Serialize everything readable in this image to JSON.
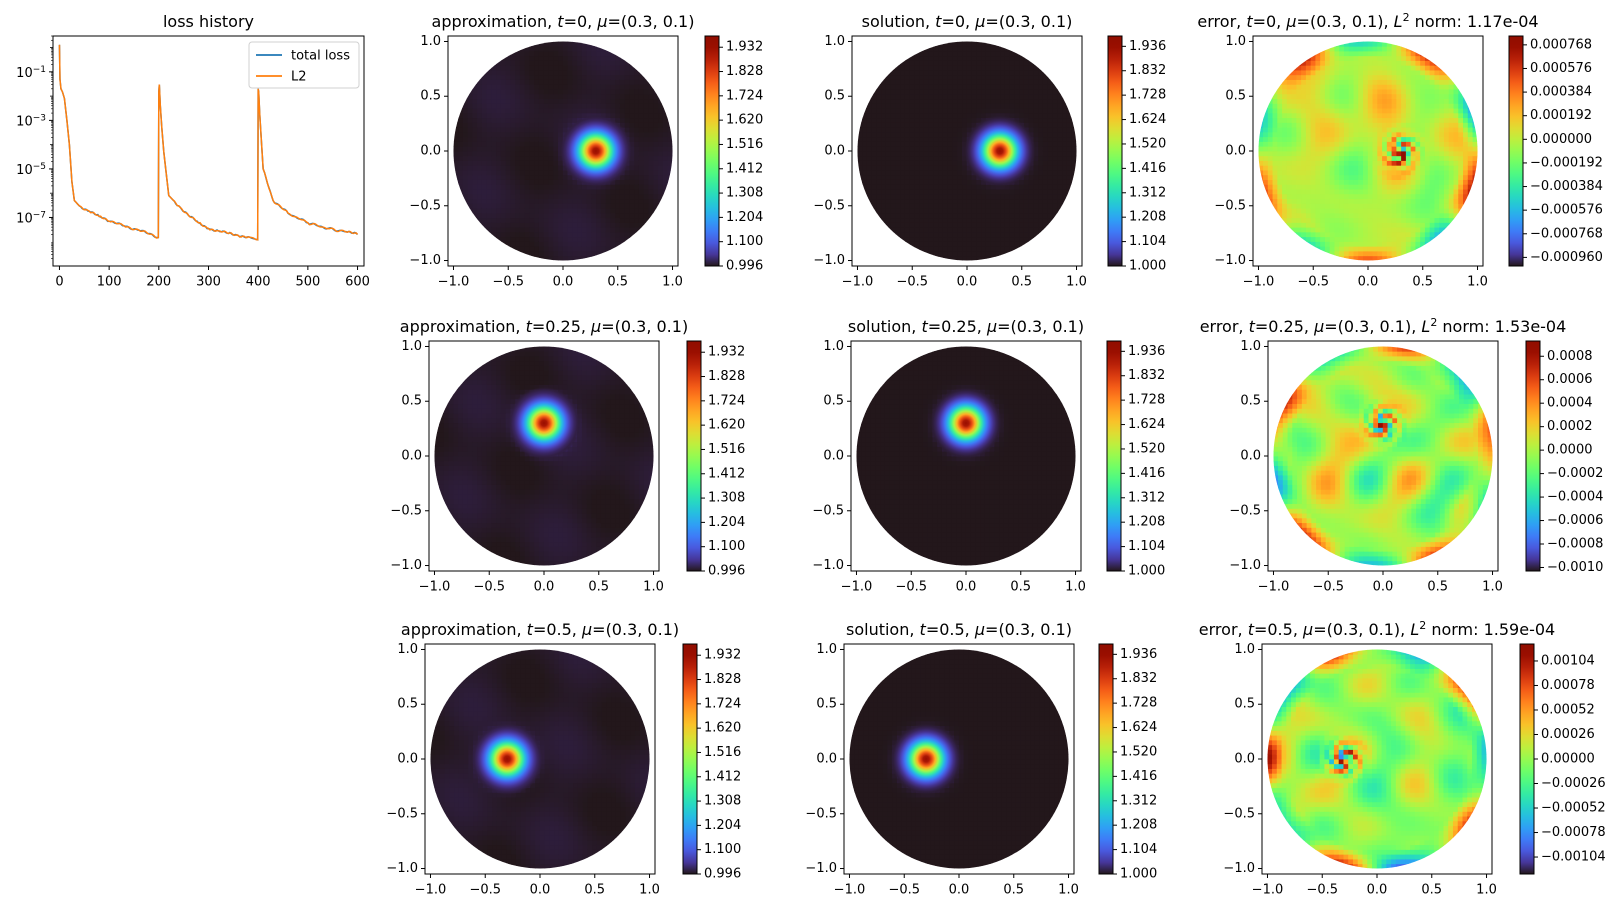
{
  "figure": {
    "colors": {
      "axis": "#000000",
      "total_loss": "#1f77b4",
      "l2": "#ff7f0e"
    },
    "colormap": "turbo"
  },
  "chart_data": [
    {
      "id": "loss",
      "type": "line",
      "scale_y": "log",
      "title": "loss history",
      "xlim": [
        -13,
        613
      ],
      "ylim": [
        1e-09,
        3
      ],
      "x_ticks": [
        0,
        100,
        200,
        300,
        400,
        500,
        600
      ],
      "x_tick_labels": [
        "0",
        "100",
        "200",
        "300",
        "400",
        "500",
        "600"
      ],
      "y_ticks": [
        1e-07,
        1e-05,
        0.001,
        0.1
      ],
      "y_tick_labels": [
        {
          "base": "10",
          "exp": "−7"
        },
        {
          "base": "10",
          "exp": "−5"
        },
        {
          "base": "10",
          "exp": "−3"
        },
        {
          "base": "10",
          "exp": "−1"
        }
      ],
      "legend": {
        "position": "upper right",
        "entries": [
          "total loss",
          "L2"
        ]
      },
      "series": [
        {
          "name": "total loss",
          "color": "#1f77b4",
          "x": [
            0,
            1,
            3,
            6,
            10,
            15,
            20,
            25,
            30,
            40,
            60,
            80,
            100,
            130,
            160,
            199,
            200,
            201,
            203,
            206,
            210,
            220,
            240,
            260,
            280,
            300,
            320,
            340,
            360,
            380,
            399,
            400,
            401,
            403,
            406,
            410,
            430,
            460,
            500,
            540,
            580,
            600
          ],
          "y": [
            1.3,
            0.05,
            0.02,
            0.015,
            0.008,
            0.001,
            0.0001,
            3e-06,
            5e-07,
            3e-07,
            1.8e-07,
            1.1e-07,
            7e-08,
            4.5e-08,
            3e-08,
            1.5e-08,
            0.015,
            0.03,
            0.004,
            0.0005,
            5e-05,
            8e-07,
            3e-07,
            1.2e-07,
            6e-08,
            3.5e-08,
            2.8e-08,
            2.2e-08,
            1.8e-08,
            1.6e-08,
            1.2e-08,
            0.02,
            0.015,
            0.002,
            0.0002,
            1e-05,
            5e-07,
            1.5e-07,
            6e-08,
            3.5e-08,
            2.5e-08,
            2e-08
          ]
        },
        {
          "name": "L2",
          "color": "#ff7f0e",
          "x": [
            0,
            1,
            3,
            6,
            10,
            15,
            20,
            25,
            30,
            40,
            60,
            80,
            100,
            130,
            160,
            199,
            200,
            201,
            203,
            206,
            210,
            220,
            240,
            260,
            280,
            300,
            320,
            340,
            360,
            380,
            399,
            400,
            401,
            403,
            406,
            410,
            430,
            460,
            500,
            540,
            580,
            600
          ],
          "y": [
            1.3,
            0.05,
            0.02,
            0.015,
            0.008,
            0.001,
            0.0001,
            3e-06,
            5e-07,
            3e-07,
            1.8e-07,
            1.1e-07,
            7e-08,
            4.5e-08,
            3e-08,
            1.5e-08,
            0.015,
            0.03,
            0.004,
            0.0005,
            5e-05,
            8e-07,
            3e-07,
            1.2e-07,
            6e-08,
            3.5e-08,
            2.8e-08,
            2.2e-08,
            1.8e-08,
            1.6e-08,
            1.2e-08,
            0.02,
            0.015,
            0.002,
            0.0002,
            1e-05,
            5e-07,
            1.5e-07,
            6e-08,
            3.5e-08,
            2.5e-08,
            2e-08
          ]
        }
      ]
    },
    {
      "id": "approx-t0",
      "type": "heatmap",
      "kind": "approximation",
      "title": [
        {
          "t": "approximation, "
        },
        {
          "t": "t",
          "i": true
        },
        {
          "t": "=0, "
        },
        {
          "t": "μ",
          "i": true
        },
        {
          "t": "=(0.3, 0.1)"
        }
      ],
      "xlim": [
        -1.05,
        1.05
      ],
      "ylim": [
        -1.05,
        1.05
      ],
      "x_tick_labels": [
        "−1.0",
        "−0.5",
        "0.0",
        "0.5",
        "1.0"
      ],
      "y_tick_labels": [
        "−1.0",
        "−0.5",
        "0.0",
        "0.5",
        "1.0"
      ],
      "blob_center": [
        0.3,
        0.0
      ],
      "blob_sigma": 0.1,
      "background": 1.0,
      "peak": 1.936,
      "colorbar": {
        "min": 0.996,
        "max": 1.98,
        "ticks": [
          0.996,
          1.1,
          1.204,
          1.308,
          1.412,
          1.516,
          1.62,
          1.724,
          1.828,
          1.932
        ],
        "labels": [
          "0.996",
          "1.100",
          "1.204",
          "1.308",
          "1.412",
          "1.516",
          "1.620",
          "1.724",
          "1.828",
          "1.932"
        ]
      }
    },
    {
      "id": "sol-t0",
      "type": "heatmap",
      "kind": "solution",
      "title": [
        {
          "t": "solution, "
        },
        {
          "t": "t",
          "i": true
        },
        {
          "t": "=0, "
        },
        {
          "t": "μ",
          "i": true
        },
        {
          "t": "=(0.3, 0.1)"
        }
      ],
      "xlim": [
        -1.05,
        1.05
      ],
      "ylim": [
        -1.05,
        1.05
      ],
      "x_tick_labels": [
        "−1.0",
        "−0.5",
        "0.0",
        "0.5",
        "1.0"
      ],
      "y_tick_labels": [
        "−1.0",
        "−0.5",
        "0.0",
        "0.5",
        "1.0"
      ],
      "blob_center": [
        0.3,
        0.0
      ],
      "blob_sigma": 0.1,
      "background": 1.0,
      "peak": 1.936,
      "colorbar": {
        "min": 1.0,
        "max": 1.98,
        "ticks": [
          1.0,
          1.104,
          1.208,
          1.312,
          1.416,
          1.52,
          1.624,
          1.728,
          1.832,
          1.936
        ],
        "labels": [
          "1.000",
          "1.104",
          "1.208",
          "1.312",
          "1.416",
          "1.520",
          "1.624",
          "1.728",
          "1.832",
          "1.936"
        ]
      }
    },
    {
      "id": "err-t0",
      "type": "heatmap",
      "kind": "error",
      "title": [
        {
          "t": "error, "
        },
        {
          "t": "t",
          "i": true
        },
        {
          "t": "=0, "
        },
        {
          "t": "μ",
          "i": true
        },
        {
          "t": "=(0.3, 0.1), "
        },
        {
          "t": "L",
          "i": true
        },
        {
          "t": "2",
          "sup": true
        },
        {
          "t": " norm: 1.17e-04"
        }
      ],
      "xlim": [
        -1.05,
        1.05
      ],
      "ylim": [
        -1.05,
        1.05
      ],
      "x_tick_labels": [
        "−1.0",
        "−0.5",
        "0.0",
        "0.5",
        "1.0"
      ],
      "y_tick_labels": [
        "−1.0",
        "−0.5",
        "0.0",
        "0.5",
        "1.0"
      ],
      "blob_center": [
        0.3,
        0.0
      ],
      "seed": 3,
      "colorbar": {
        "min": -0.00103,
        "max": 0.00084,
        "ticks": [
          -0.00096,
          -0.000768,
          -0.000576,
          -0.000384,
          -0.000192,
          0.0,
          0.000192,
          0.000384,
          0.000576,
          0.000768
        ],
        "labels": [
          "−0.000960",
          "−0.000768",
          "−0.000576",
          "−0.000384",
          "−0.000192",
          "0.000000",
          "0.000192",
          "0.000384",
          "0.000576",
          "0.000768"
        ]
      }
    },
    {
      "id": "approx-t025",
      "type": "heatmap",
      "kind": "approximation",
      "title": [
        {
          "t": "approximation, "
        },
        {
          "t": "t",
          "i": true
        },
        {
          "t": "=0.25, "
        },
        {
          "t": "μ",
          "i": true
        },
        {
          "t": "=(0.3, 0.1)"
        }
      ],
      "xlim": [
        -1.05,
        1.05
      ],
      "ylim": [
        -1.05,
        1.05
      ],
      "x_tick_labels": [
        "−1.0",
        "−0.5",
        "0.0",
        "0.5",
        "1.0"
      ],
      "y_tick_labels": [
        "−1.0",
        "−0.5",
        "0.0",
        "0.5",
        "1.0"
      ],
      "blob_center": [
        0.0,
        0.3
      ],
      "blob_sigma": 0.1,
      "background": 1.0,
      "peak": 1.936,
      "colorbar": {
        "min": 0.996,
        "max": 1.98,
        "ticks": [
          0.996,
          1.1,
          1.204,
          1.308,
          1.412,
          1.516,
          1.62,
          1.724,
          1.828,
          1.932
        ],
        "labels": [
          "0.996",
          "1.100",
          "1.204",
          "1.308",
          "1.412",
          "1.516",
          "1.620",
          "1.724",
          "1.828",
          "1.932"
        ]
      }
    },
    {
      "id": "sol-t025",
      "type": "heatmap",
      "kind": "solution",
      "title": [
        {
          "t": "solution, "
        },
        {
          "t": "t",
          "i": true
        },
        {
          "t": "=0.25, "
        },
        {
          "t": "μ",
          "i": true
        },
        {
          "t": "=(0.3, 0.1)"
        }
      ],
      "xlim": [
        -1.05,
        1.05
      ],
      "ylim": [
        -1.05,
        1.05
      ],
      "x_tick_labels": [
        "−1.0",
        "−0.5",
        "0.0",
        "0.5",
        "1.0"
      ],
      "y_tick_labels": [
        "−1.0",
        "−0.5",
        "0.0",
        "0.5",
        "1.0"
      ],
      "blob_center": [
        0.0,
        0.3
      ],
      "blob_sigma": 0.1,
      "background": 1.0,
      "peak": 1.936,
      "colorbar": {
        "min": 1.0,
        "max": 1.98,
        "ticks": [
          1.0,
          1.104,
          1.208,
          1.312,
          1.416,
          1.52,
          1.624,
          1.728,
          1.832,
          1.936
        ],
        "labels": [
          "1.000",
          "1.104",
          "1.208",
          "1.312",
          "1.416",
          "1.520",
          "1.624",
          "1.728",
          "1.832",
          "1.936"
        ]
      }
    },
    {
      "id": "err-t025",
      "type": "heatmap",
      "kind": "error",
      "title": [
        {
          "t": "error, "
        },
        {
          "t": "t",
          "i": true
        },
        {
          "t": "=0.25, "
        },
        {
          "t": "μ",
          "i": true
        },
        {
          "t": "=(0.3, 0.1), "
        },
        {
          "t": "L",
          "i": true
        },
        {
          "t": "2",
          "sup": true
        },
        {
          "t": " norm: 1.53e-04"
        }
      ],
      "xlim": [
        -1.05,
        1.05
      ],
      "ylim": [
        -1.05,
        1.05
      ],
      "x_tick_labels": [
        "−1.0",
        "−0.5",
        "0.0",
        "0.5",
        "1.0"
      ],
      "y_tick_labels": [
        "−1.0",
        "−0.5",
        "0.0",
        "0.5",
        "1.0"
      ],
      "blob_center": [
        0.0,
        0.3
      ],
      "seed": 7,
      "colorbar": {
        "min": -0.00103,
        "max": 0.00093,
        "ticks": [
          -0.001,
          -0.0008,
          -0.0006,
          -0.0004,
          -0.0002,
          0.0,
          0.0002,
          0.0004,
          0.0006,
          0.0008
        ],
        "labels": [
          "−0.0010",
          "−0.0008",
          "−0.0006",
          "−0.0004",
          "−0.0002",
          "0.0000",
          "0.0002",
          "0.0004",
          "0.0006",
          "0.0008"
        ]
      }
    },
    {
      "id": "approx-t05",
      "type": "heatmap",
      "kind": "approximation",
      "title": [
        {
          "t": "approximation, "
        },
        {
          "t": "t",
          "i": true
        },
        {
          "t": "=0.5, "
        },
        {
          "t": "μ",
          "i": true
        },
        {
          "t": "=(0.3, 0.1)"
        }
      ],
      "xlim": [
        -1.05,
        1.05
      ],
      "ylim": [
        -1.05,
        1.05
      ],
      "x_tick_labels": [
        "−1.0",
        "−0.5",
        "0.0",
        "0.5",
        "1.0"
      ],
      "y_tick_labels": [
        "−1.0",
        "−0.5",
        "0.0",
        "0.5",
        "1.0"
      ],
      "blob_center": [
        -0.3,
        0.0
      ],
      "blob_sigma": 0.1,
      "background": 1.0,
      "peak": 1.936,
      "colorbar": {
        "min": 0.996,
        "max": 1.98,
        "ticks": [
          0.996,
          1.1,
          1.204,
          1.308,
          1.412,
          1.516,
          1.62,
          1.724,
          1.828,
          1.932
        ],
        "labels": [
          "0.996",
          "1.100",
          "1.204",
          "1.308",
          "1.412",
          "1.516",
          "1.620",
          "1.724",
          "1.828",
          "1.932"
        ]
      }
    },
    {
      "id": "sol-t05",
      "type": "heatmap",
      "kind": "solution",
      "title": [
        {
          "t": "solution, "
        },
        {
          "t": "t",
          "i": true
        },
        {
          "t": "=0.5, "
        },
        {
          "t": "μ",
          "i": true
        },
        {
          "t": "=(0.3, 0.1)"
        }
      ],
      "xlim": [
        -1.05,
        1.05
      ],
      "ylim": [
        -1.05,
        1.05
      ],
      "x_tick_labels": [
        "−1.0",
        "−0.5",
        "0.0",
        "0.5",
        "1.0"
      ],
      "y_tick_labels": [
        "−1.0",
        "−0.5",
        "0.0",
        "0.5",
        "1.0"
      ],
      "blob_center": [
        -0.3,
        0.0
      ],
      "blob_sigma": 0.1,
      "background": 1.0,
      "peak": 1.936,
      "colorbar": {
        "min": 1.0,
        "max": 1.98,
        "ticks": [
          1.0,
          1.104,
          1.208,
          1.312,
          1.416,
          1.52,
          1.624,
          1.728,
          1.832,
          1.936
        ],
        "labels": [
          "1.000",
          "1.104",
          "1.208",
          "1.312",
          "1.416",
          "1.520",
          "1.624",
          "1.728",
          "1.832",
          "1.936"
        ]
      }
    },
    {
      "id": "err-t05",
      "type": "heatmap",
      "kind": "error",
      "title": [
        {
          "t": "error, "
        },
        {
          "t": "t",
          "i": true
        },
        {
          "t": "=0.5, "
        },
        {
          "t": "μ",
          "i": true
        },
        {
          "t": "=(0.3, 0.1), "
        },
        {
          "t": "L",
          "i": true
        },
        {
          "t": "2",
          "sup": true
        },
        {
          "t": " norm: 1.59e-04"
        }
      ],
      "xlim": [
        -1.05,
        1.05
      ],
      "ylim": [
        -1.05,
        1.05
      ],
      "x_tick_labels": [
        "−1.0",
        "−0.5",
        "0.0",
        "0.5",
        "1.0"
      ],
      "y_tick_labels": [
        "−1.0",
        "−0.5",
        "0.0",
        "0.5",
        "1.0"
      ],
      "blob_center": [
        -0.3,
        0.0
      ],
      "seed": 11,
      "colorbar": {
        "min": -0.00122,
        "max": 0.00122,
        "ticks": [
          -0.00104,
          -0.00078,
          -0.00052,
          -0.00026,
          0.0,
          0.00026,
          0.00052,
          0.00078,
          0.00104
        ],
        "labels": [
          "−0.00104",
          "−0.00078",
          "−0.00052",
          "−0.00026",
          "0.00000",
          "0.00026",
          "0.00052",
          "0.00078",
          "0.00104"
        ]
      }
    }
  ]
}
